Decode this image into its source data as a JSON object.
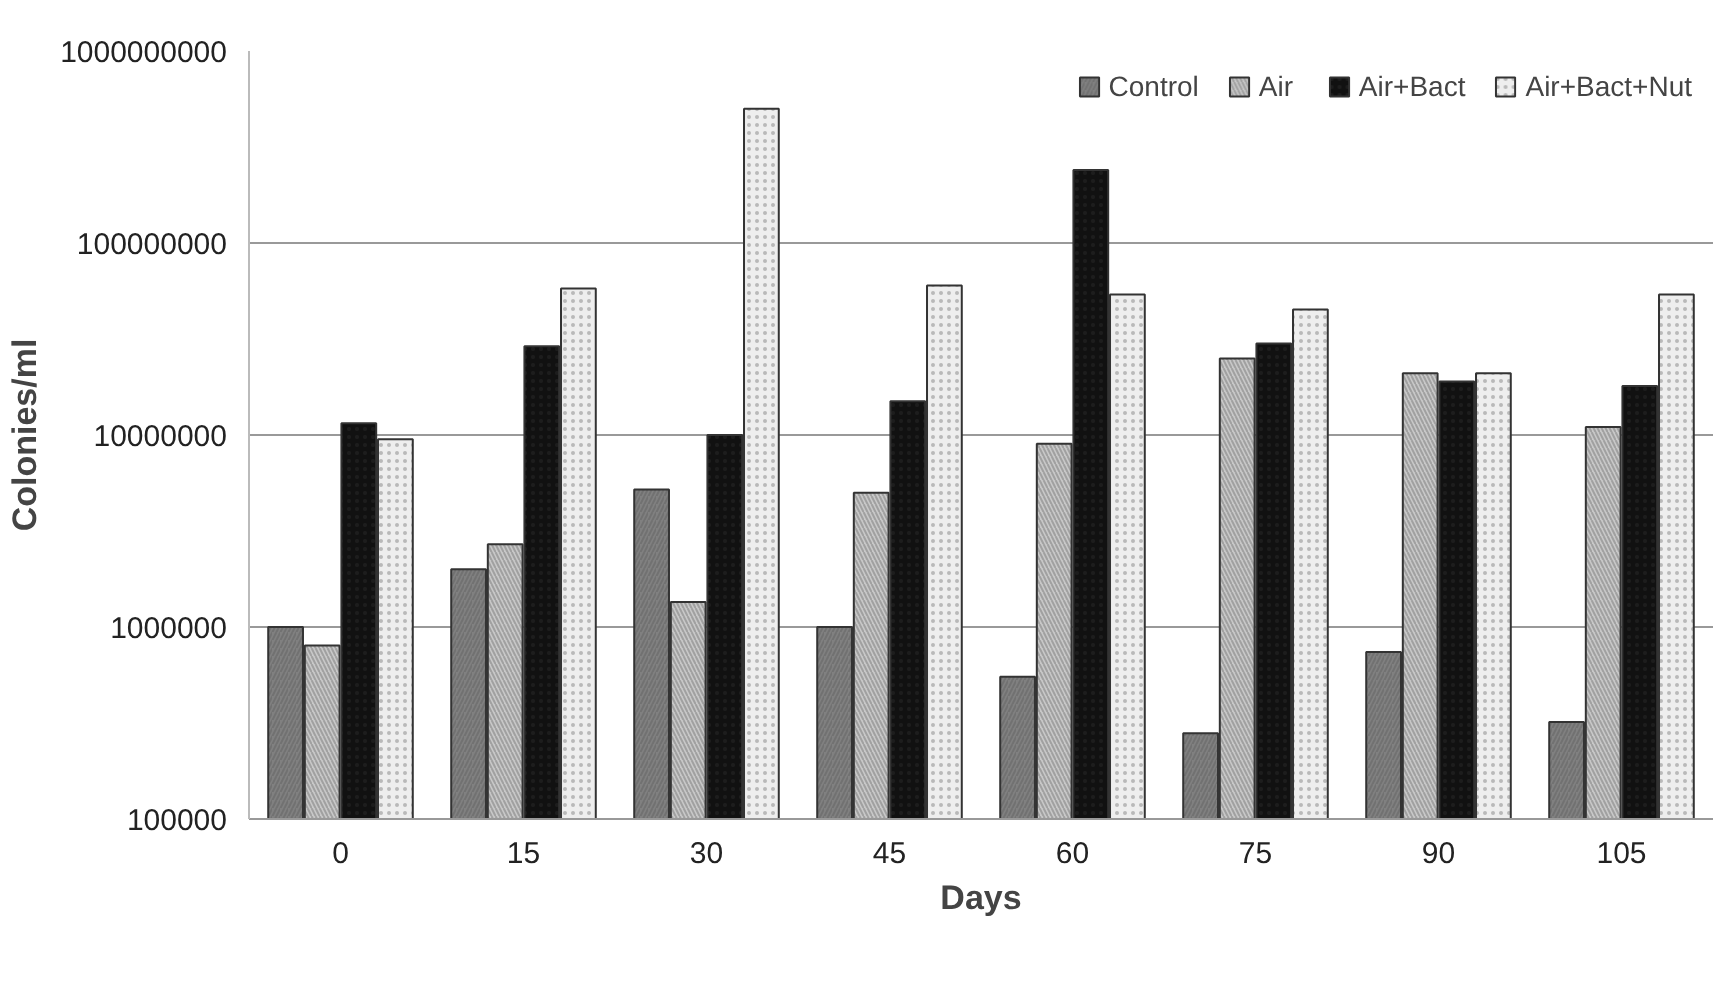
{
  "chart_data": {
    "type": "bar",
    "xlabel": "Days",
    "ylabel": "Colonies/ml",
    "log": "y",
    "grid": "y",
    "legend": "top right",
    "categories": [
      "0",
      "15",
      "30",
      "45",
      "60",
      "75",
      "90",
      "105"
    ],
    "ylim": [
      100000,
      1000000000
    ],
    "yticks": [
      100000,
      1000000,
      10000000,
      100000000,
      1000000000
    ],
    "series": [
      {
        "name": "Control",
        "color": "#808080",
        "values": [
          1000000,
          2000000,
          5200000,
          1000000,
          550000,
          280000,
          740000,
          320000
        ]
      },
      {
        "name": "Air",
        "color": "#c8c8c8",
        "values": [
          800000,
          2700000,
          1350000,
          5000000,
          9000000,
          25000000,
          21000000,
          11000000
        ]
      },
      {
        "name": "Air+Bact",
        "color": "#111111",
        "values": [
          11500000,
          29000000,
          10000000,
          15000000,
          240000000,
          30000000,
          19000000,
          18000000
        ]
      },
      {
        "name": "Air+Bact+Nut",
        "color": "#eeeeee",
        "values": [
          9500000,
          58000000,
          500000000,
          60000000,
          54000000,
          45000000,
          21000000,
          54000000
        ]
      }
    ]
  }
}
